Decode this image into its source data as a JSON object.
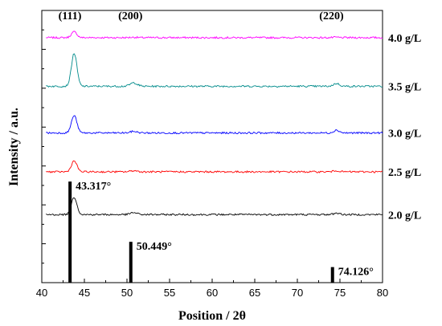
{
  "chart_data": {
    "type": "line",
    "xlabel": "Position / 2θ",
    "ylabel": "Intensity / a.u.",
    "xlim": [
      40,
      80
    ],
    "xticks": [
      40,
      45,
      50,
      55,
      60,
      65,
      70,
      75,
      80
    ],
    "grid": false,
    "series": [
      {
        "name": "4.0 g/L",
        "color": "#ff00ff",
        "offset": 6.3,
        "main_peak": 0.15,
        "p200": 0.01,
        "p220": 0.01
      },
      {
        "name": "3.5 g/L",
        "color": "#008b8b",
        "offset": 5.05,
        "main_peak": 0.85,
        "p200": 0.09,
        "p220": 0.07
      },
      {
        "name": "3.0 g/L",
        "color": "#0000ff",
        "offset": 3.85,
        "main_peak": 0.45,
        "p200": 0.04,
        "p220": 0.07
      },
      {
        "name": "2.5 g/L",
        "color": "#ff0000",
        "offset": 2.85,
        "main_peak": 0.28,
        "p200": 0.03,
        "p220": 0.03
      },
      {
        "name": "2.0 g/L",
        "color": "#000000",
        "offset": 1.75,
        "main_peak": 0.45,
        "p200": 0.05,
        "p220": 0.04
      }
    ],
    "peak_labels": [
      {
        "label": "(111)",
        "x": 43.3
      },
      {
        "label": "(200)",
        "x": 50.4
      },
      {
        "label": "(220)",
        "x": 74.1
      }
    ],
    "reference_lines": [
      {
        "x": 43.317,
        "label": "43.317°",
        "height": 2.6
      },
      {
        "x": 50.449,
        "label": "50.449°",
        "height": 1.05
      },
      {
        "x": 74.126,
        "label": "74.126°",
        "height": 0.4
      }
    ]
  }
}
